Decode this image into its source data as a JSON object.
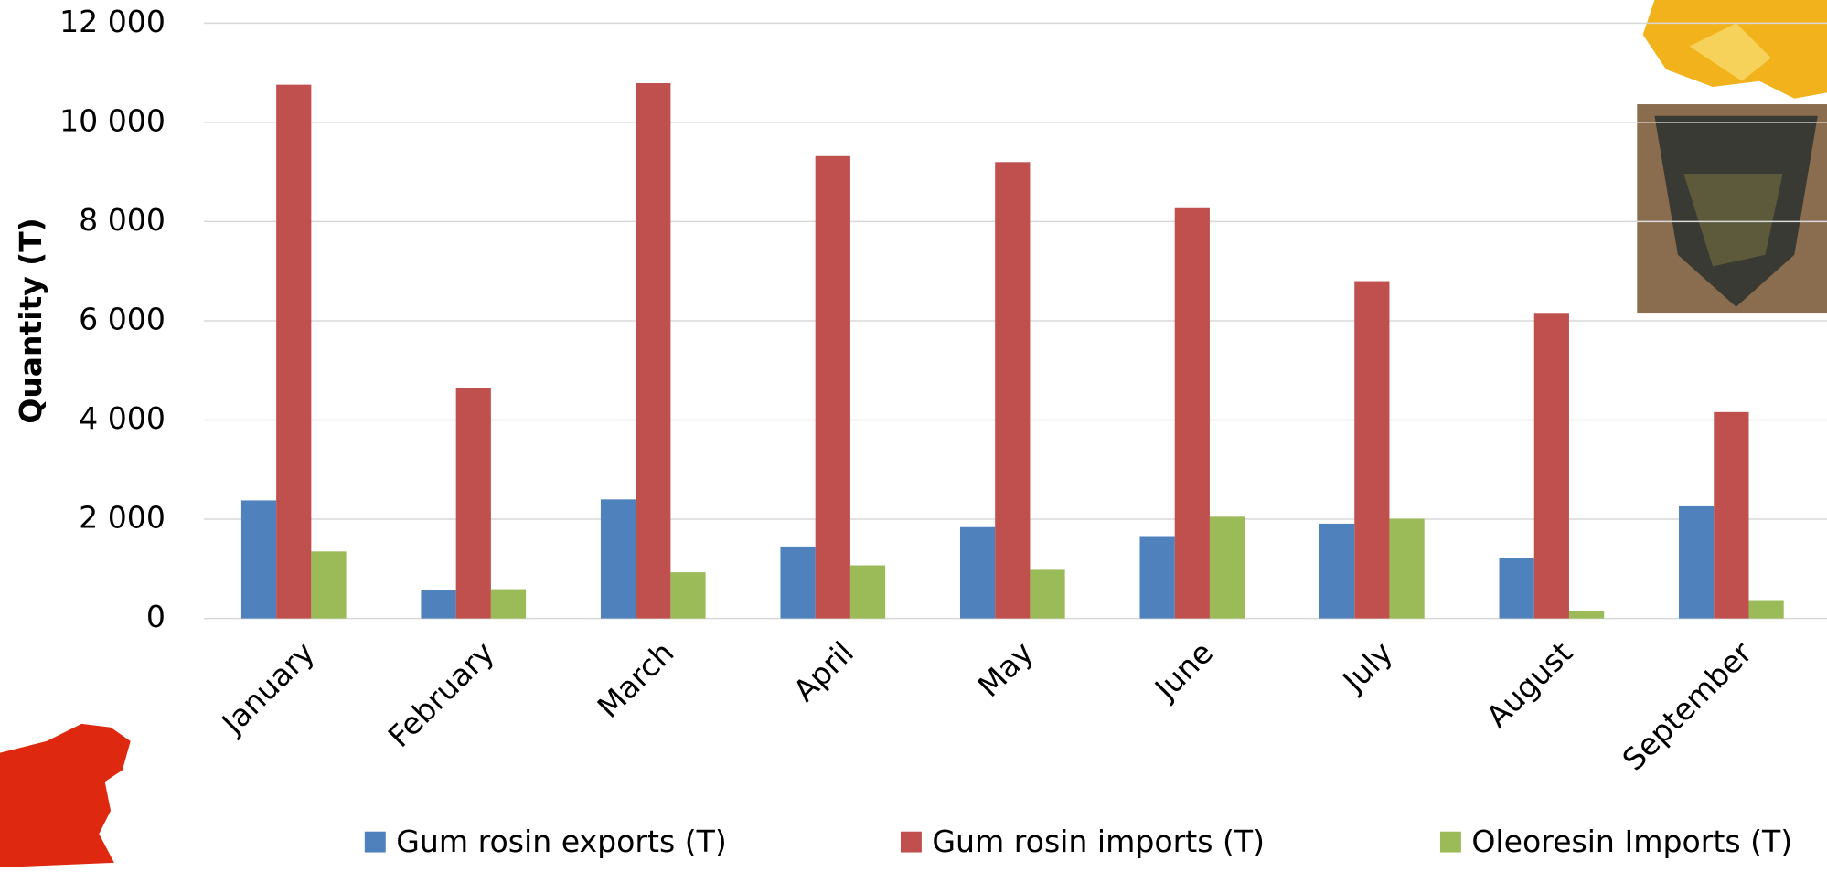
{
  "chart_data": {
    "type": "bar",
    "y_label": "Quantity (T)",
    "categories": [
      "January",
      "February",
      "March",
      "April",
      "May",
      "June",
      "July",
      "August",
      "September"
    ],
    "series": [
      {
        "name": "Gum rosin exports (T)",
        "color": "#4f81bd",
        "values": [
          2380,
          580,
          2400,
          1450,
          1840,
          1660,
          1910,
          1210,
          2260
        ]
      },
      {
        "name": "Gum rosin imports (T)",
        "color": "#c0504d",
        "values": [
          10760,
          4650,
          10790,
          9320,
          9200,
          8270,
          6800,
          6160,
          4160
        ]
      },
      {
        "name": "Oleoresin Imports (T)",
        "color": "#9bbb59",
        "values": [
          1350,
          590,
          930,
          1070,
          980,
          2050,
          2010,
          140,
          370
        ]
      }
    ],
    "ylim": [
      0,
      12000
    ],
    "yticks": [
      0,
      {
        "value": 2000,
        "label": "2 000"
      },
      {
        "value": 4000,
        "label": "4 000"
      },
      {
        "value": 6000,
        "label": "6 000"
      },
      {
        "value": 8000,
        "label": "8 000"
      },
      {
        "value": 10000,
        "label": "10 000"
      },
      {
        "value": 12000,
        "label": "12 000"
      }
    ],
    "grid": true,
    "legend": "bottom"
  }
}
